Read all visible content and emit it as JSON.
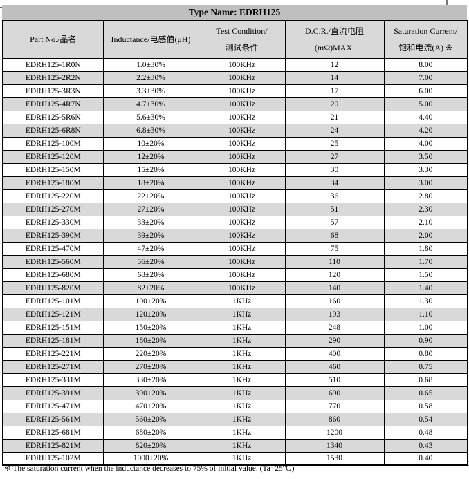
{
  "title": "Type Name: EDRH125",
  "table": {
    "columns": [
      {
        "line1": "Part No./品名",
        "line2": ""
      },
      {
        "line1": "Inductance/电感值(μH)",
        "line2": ""
      },
      {
        "line1": "Test Condition/",
        "line2": "测试条件"
      },
      {
        "line1": "D.C.R./直流电阻",
        "line2": "(mΩ)MAX."
      },
      {
        "line1": "Saturation Current/",
        "line2": "饱和电流(A)  ※"
      }
    ],
    "rows": [
      [
        "EDRH125-1R0N",
        "1.0±30%",
        "100KHz",
        "12",
        "8.00"
      ],
      [
        "EDRH125-2R2N",
        "2.2±30%",
        "100KHz",
        "14",
        "7.00"
      ],
      [
        "EDRH125-3R3N",
        "3.3±30%",
        "100KHz",
        "17",
        "6.00"
      ],
      [
        "EDRH125-4R7N",
        "4.7±30%",
        "100KHz",
        "20",
        "5.00"
      ],
      [
        "EDRH125-5R6N",
        "5.6±30%",
        "100KHz",
        "21",
        "4.40"
      ],
      [
        "EDRH125-6R8N",
        "6.8±30%",
        "100KHz",
        "24",
        "4.20"
      ],
      [
        "EDRH125-100M",
        "10±20%",
        "100KHz",
        "25",
        "4.00"
      ],
      [
        "EDRH125-120M",
        "12±20%",
        "100KHz",
        "27",
        "3.50"
      ],
      [
        "EDRH125-150M",
        "15±20%",
        "100KHz",
        "30",
        "3.30"
      ],
      [
        "EDRH125-180M",
        "18±20%",
        "100KHz",
        "34",
        "3.00"
      ],
      [
        "EDRH125-220M",
        "22±20%",
        "100KHz",
        "36",
        "2.80"
      ],
      [
        "EDRH125-270M",
        "27±20%",
        "100KHz",
        "51",
        "2.30"
      ],
      [
        "EDRH125-330M",
        "33±20%",
        "100KHz",
        "57",
        "2.10"
      ],
      [
        "EDRH125-390M",
        "39±20%",
        "100KHz",
        "68",
        "2.00"
      ],
      [
        "EDRH125-470M",
        "47±20%",
        "100KHz",
        "75",
        "1.80"
      ],
      [
        "EDRH125-560M",
        "56±20%",
        "100KHz",
        "110",
        "1.70"
      ],
      [
        "EDRH125-680M",
        "68±20%",
        "100KHz",
        "120",
        "1.50"
      ],
      [
        "EDRH125-820M",
        "82±20%",
        "100KHz",
        "140",
        "1.40"
      ],
      [
        "EDRH125-101M",
        "100±20%",
        "1KHz",
        "160",
        "1.30"
      ],
      [
        "EDRH125-121M",
        "120±20%",
        "1KHz",
        "193",
        "1.10"
      ],
      [
        "EDRH125-151M",
        "150±20%",
        "1KHz",
        "248",
        "1.00"
      ],
      [
        "EDRH125-181M",
        "180±20%",
        "1KHz",
        "290",
        "0.90"
      ],
      [
        "EDRH125-221M",
        "220±20%",
        "1KHz",
        "400",
        "0.80"
      ],
      [
        "EDRH125-271M",
        "270±20%",
        "1KHz",
        "460",
        "0.75"
      ],
      [
        "EDRH125-331M",
        "330±20%",
        "1KHz",
        "510",
        "0.68"
      ],
      [
        "EDRH125-391M",
        "390±20%",
        "1KHz",
        "690",
        "0.65"
      ],
      [
        "EDRH125-471M",
        "470±20%",
        "1KHz",
        "770",
        "0.58"
      ],
      [
        "EDRH125-561M",
        "560±20%",
        "1KHz",
        "860",
        "0.54"
      ],
      [
        "EDRH125-681M",
        "680±20%",
        "1KHz",
        "1200",
        "0.48"
      ],
      [
        "EDRH125-821M",
        "820±20%",
        "1KHz",
        "1340",
        "0.43"
      ],
      [
        "EDRH125-102M",
        "1000±20%",
        "1KHz",
        "1530",
        "0.40"
      ]
    ]
  },
  "footnote": "※  The saturation current when the inductance decreases to 75% of initial value. (Ta=25℃)"
}
